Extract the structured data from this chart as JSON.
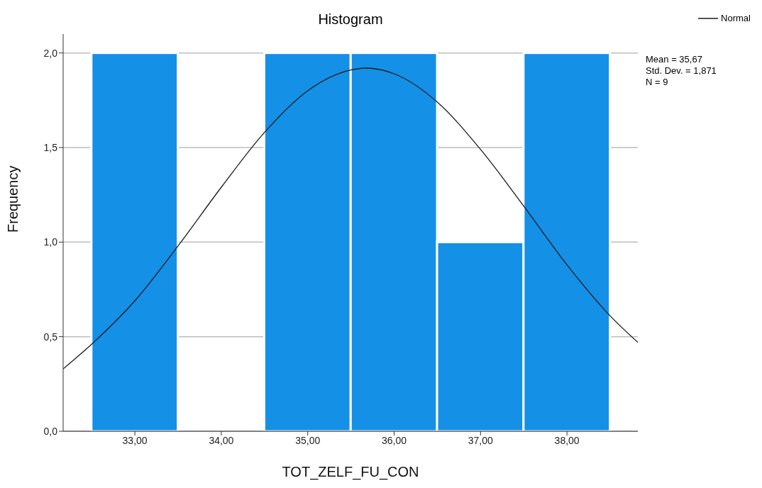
{
  "chart_data": {
    "type": "histogram",
    "title": "Histogram",
    "xlabel": "TOT_ZELF_FU_CON",
    "ylabel": "Frequency",
    "bins": [
      32.5,
      33.5,
      34.5,
      35.5,
      36.5,
      37.5,
      38.5
    ],
    "values": [
      2,
      0,
      2,
      2,
      1,
      2
    ],
    "color": "#1490e6",
    "series": [
      {
        "type": "line",
        "name": "Normal",
        "color": "#1a1a1a",
        "x": [
          32.17,
          32.5,
          33,
          33.5,
          34,
          34.5,
          35,
          35.5,
          35.67,
          36,
          36.5,
          37,
          37.5,
          38,
          38.5,
          38.82
        ],
        "values": [
          0.33,
          0.46,
          0.69,
          0.98,
          1.29,
          1.58,
          1.8,
          1.91,
          1.92,
          1.89,
          1.74,
          1.49,
          1.19,
          0.88,
          0.61,
          0.47
        ]
      }
    ],
    "xlim": [
      32.17,
      38.82
    ],
    "xticks": [
      {
        "value": 33,
        "label": "33,00"
      },
      {
        "value": 34,
        "label": "34,00"
      },
      {
        "value": 35,
        "label": "35,00"
      },
      {
        "value": 36,
        "label": "36,00"
      },
      {
        "value": 37,
        "label": "37,00"
      },
      {
        "value": 38,
        "label": "38,00"
      }
    ],
    "ylim": [
      0,
      2.1
    ],
    "yticks": [
      {
        "value": 0,
        "label": "0,0"
      },
      {
        "value": 0.5,
        "label": "0,5"
      },
      {
        "value": 1,
        "label": "1,0"
      },
      {
        "value": 1.5,
        "label": "1,5"
      },
      {
        "value": 2,
        "label": "2,0"
      }
    ],
    "grid": "y",
    "legend": "top right",
    "annotations": [
      "Mean = 35,67",
      "Std. Dev. = 1,871",
      "N = 9"
    ]
  }
}
